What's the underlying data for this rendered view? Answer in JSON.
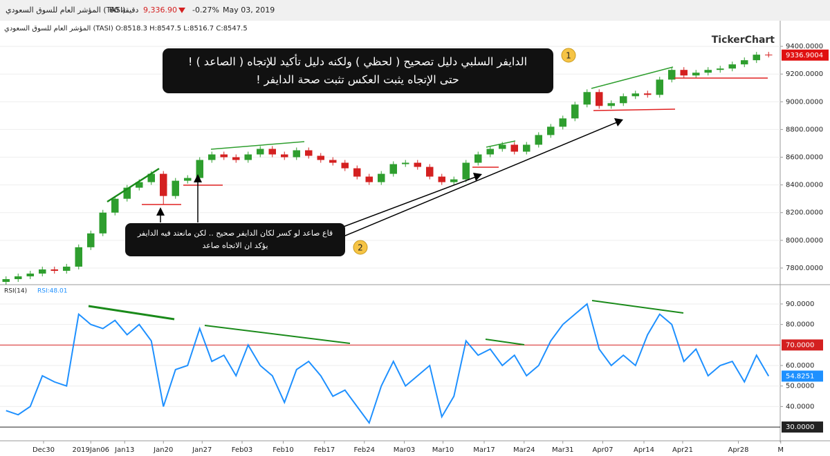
{
  "header": {
    "symbol": "المؤشر العام للسوق السعودي (TASI)",
    "interval": "60 دقيقة",
    "price": "9,336.90",
    "change": "-0.27%",
    "date": "May 03, 2019",
    "ohlc": "المؤشر العام للسوق السعودي (TASI) O:8518.3 H:8547.5 L:8516.7 C:8547.5",
    "watermark": "TickerChart"
  },
  "chart_data": [
    {
      "type": "candlestick",
      "up_color": "#2e9e2e",
      "down_color": "#d42020",
      "open": [
        7700,
        7720,
        7740,
        7760,
        7790,
        7780,
        7810,
        7950,
        8050,
        8200,
        8300,
        8380,
        8420,
        8480,
        8320,
        8430,
        8450,
        8580,
        8620,
        8600,
        8580,
        8620,
        8660,
        8620,
        8600,
        8650,
        8610,
        8580,
        8560,
        8520,
        8460,
        8420,
        8480,
        8550,
        8560,
        8530,
        8460,
        8420,
        8440,
        8560,
        8620,
        8660,
        8690,
        8640,
        8690,
        8760,
        8820,
        8880,
        8980,
        9070,
        8970,
        8990,
        9040,
        9060,
        9050,
        9160,
        9230,
        9190,
        9210,
        9230,
        9240,
        9270,
        9300,
        9340
      ],
      "high": [
        7740,
        7760,
        7780,
        7810,
        7810,
        7830,
        7970,
        8070,
        8220,
        8320,
        8400,
        8440,
        8500,
        8500,
        8450,
        8470,
        8600,
        8640,
        8640,
        8620,
        8640,
        8680,
        8680,
        8640,
        8670,
        8670,
        8630,
        8600,
        8580,
        8540,
        8480,
        8500,
        8570,
        8580,
        8580,
        8550,
        8480,
        8460,
        8580,
        8640,
        8680,
        8710,
        8710,
        8710,
        8780,
        8840,
        8900,
        9000,
        9090,
        9090,
        9010,
        9060,
        9080,
        9080,
        9180,
        9250,
        9250,
        9230,
        9250,
        9260,
        9290,
        9320,
        9360,
        9360
      ],
      "low": [
        7680,
        7700,
        7720,
        7740,
        7760,
        7760,
        7790,
        7930,
        8030,
        8180,
        8280,
        8360,
        8400,
        8260,
        8300,
        8410,
        8430,
        8560,
        8580,
        8560,
        8560,
        8600,
        8600,
        8580,
        8580,
        8590,
        8560,
        8540,
        8500,
        8440,
        8400,
        8400,
        8460,
        8530,
        8510,
        8440,
        8400,
        8400,
        8420,
        8540,
        8600,
        8640,
        8620,
        8620,
        8670,
        8740,
        8800,
        8860,
        8960,
        8950,
        8950,
        8970,
        9020,
        9030,
        9030,
        9140,
        9170,
        9170,
        9190,
        9210,
        9220,
        9250,
        9280,
        9320
      ],
      "close": [
        7720,
        7740,
        7760,
        7790,
        7780,
        7810,
        7950,
        8050,
        8200,
        8300,
        8380,
        8420,
        8480,
        8320,
        8430,
        8450,
        8580,
        8620,
        8600,
        8580,
        8620,
        8660,
        8620,
        8600,
        8650,
        8610,
        8580,
        8560,
        8520,
        8460,
        8420,
        8480,
        8550,
        8560,
        8530,
        8460,
        8420,
        8440,
        8560,
        8620,
        8660,
        8690,
        8640,
        8690,
        8760,
        8820,
        8880,
        8980,
        9070,
        8970,
        8990,
        9040,
        9060,
        9050,
        9160,
        9230,
        9190,
        9210,
        9230,
        9240,
        9270,
        9300,
        9340,
        9336.9004
      ],
      "xlim": [
        -0.5,
        63.5
      ],
      "xticks": [
        {
          "value": 3.1,
          "label": "Dec30"
        },
        {
          "value": 7.0,
          "label": "2019Jan06"
        },
        {
          "value": 9.8,
          "label": "Jan13"
        },
        {
          "value": 13.0,
          "label": "Jan20"
        },
        {
          "value": 16.2,
          "label": "Jan27"
        },
        {
          "value": 19.5,
          "label": "Feb03"
        },
        {
          "value": 22.9,
          "label": "Feb10"
        },
        {
          "value": 26.3,
          "label": "Feb17"
        },
        {
          "value": 29.6,
          "label": "Feb24"
        },
        {
          "value": 32.9,
          "label": "Mar03"
        },
        {
          "value": 36.1,
          "label": "Mar10"
        },
        {
          "value": 39.5,
          "label": "Mar17"
        },
        {
          "value": 42.8,
          "label": "Mar24"
        },
        {
          "value": 46.0,
          "label": "Mar31"
        },
        {
          "value": 49.3,
          "label": "Apr07"
        },
        {
          "value": 52.7,
          "label": "Apr14"
        },
        {
          "value": 55.9,
          "label": "Apr21"
        },
        {
          "value": 60.5,
          "label": "Apr28"
        },
        {
          "value": 64.0,
          "label": "M"
        }
      ],
      "ylim": [
        7690,
        9585
      ],
      "yticks": [
        {
          "value": 9400,
          "label": "9400.0000"
        },
        {
          "value": 9200,
          "label": "9200.0000"
        },
        {
          "value": 9000,
          "label": "9000.0000"
        },
        {
          "value": 8800,
          "label": "8800.0000"
        },
        {
          "value": 8600,
          "label": "8600.0000"
        },
        {
          "value": 8400,
          "label": "8400.0000"
        },
        {
          "value": 8200,
          "label": "8200.0000"
        },
        {
          "value": 8000,
          "label": "8000.0000"
        },
        {
          "value": 7800,
          "label": "7800.0000"
        }
      ],
      "annotations": {
        "box1": [
          "الدايفر السلبي دليل تصحيح ( لحظي ) ولكنه دليل تأكيد للإتجاه ( الصاعد ) !",
          "حتى الإتجاه يثبت العكس تثبت صحة الدايفر !"
        ],
        "box2": [
          "قاع صاعد لو كسر لكان الدايفر صحيح .. لكن مانعتد فيه الدايفر",
          "يؤكد ان الاتجاه صاعد"
        ],
        "marker1": "1",
        "marker2": "2"
      }
    },
    {
      "type": "line",
      "name": "RSI(14)",
      "legend": "RSI:48.01",
      "color": "#1e90ff",
      "values": [
        38,
        36,
        40,
        55,
        52,
        50,
        85,
        80,
        78,
        82,
        75,
        80,
        72,
        40,
        58,
        60,
        78,
        62,
        65,
        55,
        70,
        60,
        55,
        42,
        58,
        62,
        55,
        45,
        48,
        40,
        32,
        50,
        62,
        50,
        55,
        60,
        35,
        45,
        72,
        65,
        68,
        60,
        65,
        55,
        60,
        72,
        80,
        85,
        90,
        68,
        60,
        65,
        60,
        75,
        85,
        80,
        62,
        68,
        55,
        60,
        62,
        52,
        65,
        54.8251
      ],
      "ylim": [
        24.3,
        98.4
      ],
      "yticks": [
        {
          "value": 90,
          "label": "90.0000"
        },
        {
          "value": 80,
          "label": "80.0000"
        },
        {
          "value": 60,
          "label": "60.0000"
        },
        {
          "value": 50,
          "label": "50.0000"
        },
        {
          "value": 40,
          "label": "40.0000"
        }
      ],
      "levels": [
        {
          "value": 70,
          "label": "70.0000",
          "color": "#d42020"
        },
        {
          "value": 30,
          "label": "30.0000",
          "color": "#222222"
        }
      ]
    }
  ]
}
